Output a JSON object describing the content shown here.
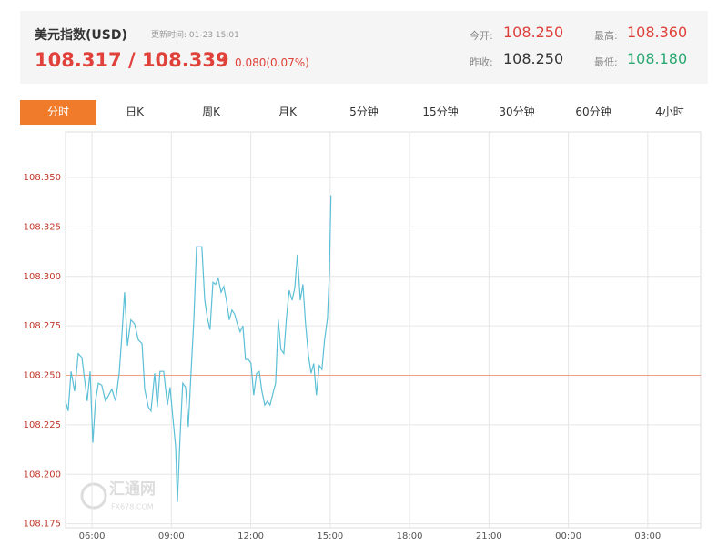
{
  "header": {
    "title": "美元指数(USD)",
    "update_time": "更新时间: 01-23 15:01",
    "price": "108.317 / 108.339",
    "change": "0.080(0.07%)",
    "open_label": "今开:",
    "open": "108.250",
    "high_label": "最高:",
    "high": "108.360",
    "prev_close_label": "昨收:",
    "prev_close": "108.250",
    "low_label": "最低:",
    "low": "108.180"
  },
  "tabs": [
    "分时",
    "日K",
    "周K",
    "月K",
    "5分钟",
    "15分钟",
    "30分钟",
    "60分钟",
    "4小时"
  ],
  "watermark": {
    "name": "汇通网",
    "site": "FX678.COM"
  },
  "chart_data": {
    "type": "line",
    "x": [
      5.0,
      5.1,
      5.21,
      5.34,
      5.48,
      5.62,
      5.82,
      5.93,
      6.03,
      6.13,
      6.24,
      6.37,
      6.51,
      6.75,
      6.89,
      7.03,
      7.13,
      7.23,
      7.34,
      7.47,
      7.61,
      7.75,
      7.89,
      7.99,
      8.13,
      8.23,
      8.37,
      8.47,
      8.57,
      8.71,
      8.85,
      8.95,
      9.06,
      9.16,
      9.23,
      9.33,
      9.43,
      9.54,
      9.64,
      9.74,
      9.85,
      9.95,
      10.15,
      10.26,
      10.36,
      10.46,
      10.57,
      10.67,
      10.77,
      10.88,
      10.98,
      11.08,
      11.19,
      11.29,
      11.39,
      11.49,
      11.6,
      11.7,
      11.8,
      11.91,
      12.01,
      12.11,
      12.22,
      12.32,
      12.42,
      12.53,
      12.63,
      12.73,
      12.84,
      12.94,
      13.04,
      13.14,
      13.25,
      13.35,
      13.45,
      13.56,
      13.66,
      13.76,
      13.87,
      13.97,
      14.07,
      14.18,
      14.28,
      14.38,
      14.48,
      14.59,
      14.69,
      14.79,
      14.9,
      14.97,
      15.03
    ],
    "series": [
      {
        "color": "#5bbfd6",
        "values": [
          108.237,
          108.232,
          108.252,
          108.242,
          108.261,
          108.259,
          108.237,
          108.252,
          108.216,
          108.237,
          108.246,
          108.245,
          108.237,
          108.243,
          108.237,
          108.251,
          108.27,
          108.292,
          108.265,
          108.278,
          108.276,
          108.268,
          108.266,
          108.243,
          108.234,
          108.232,
          108.251,
          108.234,
          108.252,
          108.252,
          108.235,
          108.244,
          108.228,
          108.214,
          108.186,
          108.219,
          108.246,
          108.244,
          108.224,
          108.251,
          108.279,
          108.315,
          108.315,
          108.288,
          108.279,
          108.273,
          108.297,
          108.296,
          108.299,
          108.292,
          108.295,
          108.288,
          108.278,
          108.283,
          108.281,
          108.276,
          108.272,
          108.275,
          108.258,
          108.258,
          108.256,
          108.24,
          108.251,
          108.252,
          108.242,
          108.235,
          108.237,
          108.235,
          108.241,
          108.246,
          108.278,
          108.263,
          108.261,
          108.279,
          108.293,
          108.288,
          108.294,
          108.311,
          108.288,
          108.296,
          108.276,
          108.26,
          108.251,
          108.256,
          108.24,
          108.255,
          108.253,
          108.268,
          108.279,
          108.302,
          108.341
        ]
      }
    ],
    "baseline": {
      "value": 108.25,
      "color": "#f0a080"
    },
    "xlim": [
      5,
      29
    ],
    "ylim": [
      108.173,
      108.373
    ],
    "xticks": [
      {
        "value": 6,
        "label": "06:00"
      },
      {
        "value": 9,
        "label": "09:00"
      },
      {
        "value": 12,
        "label": "12:00"
      },
      {
        "value": 15,
        "label": "15:00"
      },
      {
        "value": 18,
        "label": "18:00"
      },
      {
        "value": 21,
        "label": "21:00"
      },
      {
        "value": 24,
        "label": "00:00"
      },
      {
        "value": 27,
        "label": "03:00"
      }
    ],
    "yticks": [
      {
        "value": 108.175,
        "label": "108.175"
      },
      {
        "value": 108.2,
        "label": "108.200"
      },
      {
        "value": 108.225,
        "label": "108.225"
      },
      {
        "value": 108.25,
        "label": "108.250"
      },
      {
        "value": 108.275,
        "label": "108.275"
      },
      {
        "value": 108.3,
        "label": "108.300"
      },
      {
        "value": 108.325,
        "label": "108.325"
      },
      {
        "value": 108.35,
        "label": "108.350"
      }
    ],
    "grid": true
  }
}
